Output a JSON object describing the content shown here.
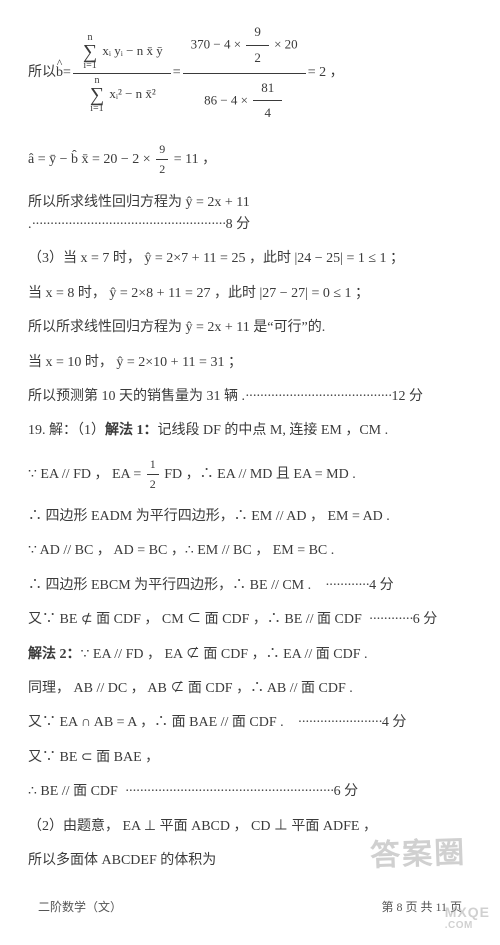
{
  "p1_pre": "所以",
  "p1_bhat": "b",
  "p1_eq1": " = ",
  "p1_sumtop": "n",
  "p1_sumbot": "i=1",
  "p1_num1": "xᵢ yᵢ − n x̄ ȳ",
  "p1_den1": "xᵢ² − n x̄²",
  "p1_eq2": " = ",
  "p1_num2a": "370 − 4 × ",
  "p1_num2b_num": "9",
  "p1_num2b_den": "2",
  "p1_num2c": " × 20",
  "p1_den2a": "86 − 4 × ",
  "p1_den2b_num": "81",
  "p1_den2b_den": "4",
  "p1_eq3": " = 2 ，",
  "p2_a": "â = ȳ − b̂ x̄ = 20 − 2 × ",
  "p2_fr_num": "9",
  "p2_fr_den": "2",
  "p2_b": " = 11 ，",
  "p3": "所以所求线性回归方程为 ŷ = 2x + 11 .",
  "p3_dots": "·····················································",
  "p3_score": "8 分",
  "p4": "（3）当 x = 7 时，  ŷ = 2×7 + 11 = 25 ，此时 |24 − 25| = 1 ≤ 1 ；",
  "p5": "当 x = 8 时， ŷ = 2×8 + 11 = 27 ，此时 |27 − 27| = 0 ≤ 1 ；",
  "p6": "所以所求线性回归方程为 ŷ = 2x + 11 是“可行”的.",
  "p7": "当 x = 10 时， ŷ = 2×10 + 11 = 31 ；",
  "p8": "所以预测第 10 天的销售量为 31 辆 .",
  "p8_dots": "········································",
  "p8_score": "12 分",
  "p9a": "19. 解：（1）",
  "p9b": "解法 1：",
  "p9c": "记线段 DF 的中点 M, 连接 EM ，CM .",
  "p10a": "∵ EA // FD ，  EA = ",
  "p10_fr_num": "1",
  "p10_fr_den": "2",
  "p10b": " FD ，∴ EA // MD 且 EA = MD .",
  "p11": "∴ 四边形 EADM 为平行四边形，∴ EM // AD ，  EM = AD .",
  "p12": "∵ AD // BC ， AD = BC ，∴ EM // BC ，  EM = BC .",
  "p13": "∴ 四边形 EBCM 为平行四边形，∴ BE // CM .",
  "p13_dots": "············",
  "p13_score": "4 分",
  "p14": "又∵ BE ⊄ 面 CDF ， CM ⊂ 面 CDF ，∴ BE // 面 CDF",
  "p14_dots": "············",
  "p14_score": "6 分",
  "p15a": "解法 2：",
  "p15b": "∵ EA // FD ， EA ⊄ 面 CDF ，∴ EA // 面 CDF .",
  "p16": "同理， AB // DC ， AB ⊄ 面 CDF ，∴ AB // 面 CDF .",
  "p17": "又∵ EA ∩ AB = A ，∴ 面 BAE // 面 CDF .",
  "p17_dots": "·······················",
  "p17_score": "4 分",
  "p18": "又∵ BE ⊂ 面 BAE ，",
  "p19": "∴ BE // 面 CDF",
  "p19_dots": "·························································",
  "p19_score": "6 分",
  "p20": "（2）由题意， EA ⊥ 平面 ABCD ， CD ⊥ 平面 ADFE ，",
  "p21": "所以多面体 ABCDEF 的体积为",
  "footL": "二阶数学（文）",
  "footR": "第 8 页 共 11 页",
  "wm1": "答案圈",
  "wm2a": "MXQE",
  "wm2b": ".COM"
}
